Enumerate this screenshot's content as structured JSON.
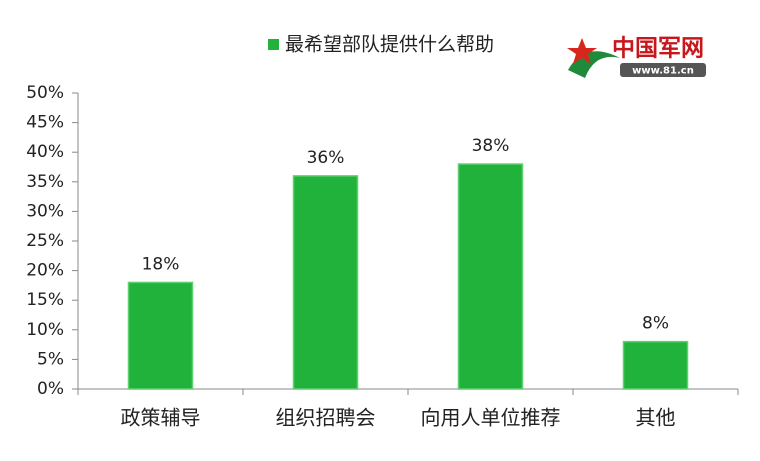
{
  "chart_data": {
    "type": "bar",
    "logo_text": "中国军网",
    "logo_url": "www.81.cn",
    "categories": [
      "政策辅导",
      "组织招聘会",
      "向用人单位推荐",
      "其他"
    ],
    "series": [
      {
        "name": "最希望部队提供什么帮助",
        "color": "#20b23a",
        "values": [
          18,
          36,
          38,
          8
        ],
        "value_labels": [
          "18%",
          "36%",
          "38%",
          "8%"
        ]
      }
    ],
    "ylim": [
      0,
      50
    ],
    "yticks": [
      {
        "value": 0,
        "label": "0%"
      },
      {
        "value": 5,
        "label": "5%"
      },
      {
        "value": 10,
        "label": "10%"
      },
      {
        "value": 15,
        "label": "15%"
      },
      {
        "value": 20,
        "label": "20%"
      },
      {
        "value": 25,
        "label": "25%"
      },
      {
        "value": 30,
        "label": "30%"
      },
      {
        "value": 35,
        "label": "35%"
      },
      {
        "value": 40,
        "label": "40%"
      },
      {
        "value": 45,
        "label": "45%"
      },
      {
        "value": 50,
        "label": "50%"
      }
    ],
    "grid": false,
    "legend": "top"
  }
}
